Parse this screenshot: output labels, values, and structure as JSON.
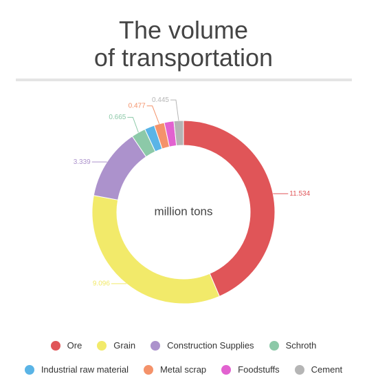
{
  "title_line1": "The volume",
  "title_line2": "of transportation",
  "chart_data": {
    "type": "pie",
    "center_label": "million tons",
    "categories": [
      "Ore",
      "Grain",
      "Construction Supplies",
      "Schroth",
      "Industrial raw material",
      "Metal scrap",
      "Foodstuffs",
      "Cement"
    ],
    "values": [
      11.534,
      9.096,
      3.339,
      0.665,
      0.47,
      0.477,
      0.45,
      0.445
    ],
    "data_labels": [
      "11.534",
      "9.096",
      "3.339",
      "0.665",
      "",
      "0.477",
      "",
      "0.445"
    ],
    "colors": [
      "#e05558",
      "#f2ea6a",
      "#ac92cc",
      "#8cc9a8",
      "#5ab4e6",
      "#f4926a",
      "#e262d0",
      "#b5b5b5"
    ],
    "legend_position": "bottom"
  }
}
